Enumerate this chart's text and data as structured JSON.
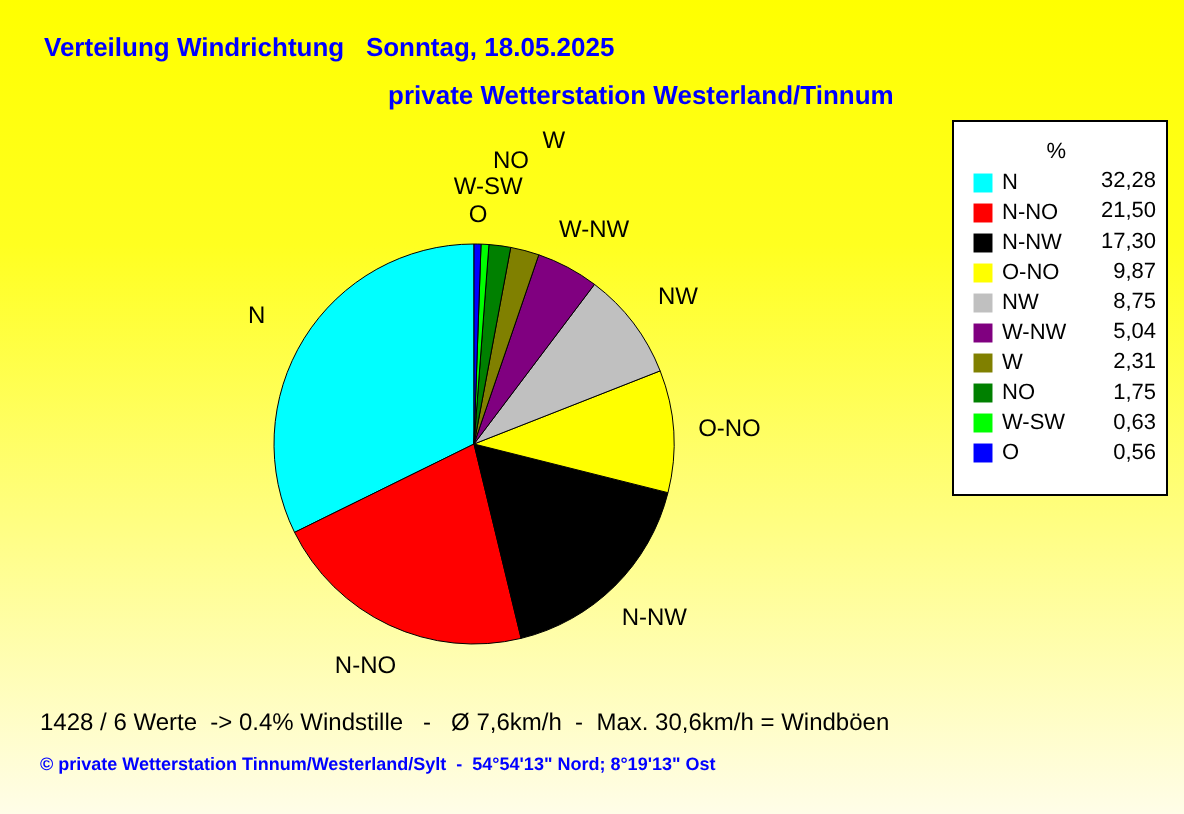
{
  "chart_data": {
    "type": "pie",
    "title": "Verteilung Windrichtung   Sonntag, 18.05.2025",
    "subtitle": "private Wetterstation Westerland/Tinnum",
    "legend_title": "%",
    "legend": "right",
    "categories": [
      "N",
      "N-NO",
      "N-NW",
      "O-NO",
      "NW",
      "W-NW",
      "W",
      "NO",
      "W-SW",
      "O"
    ],
    "values": [
      32.28,
      21.5,
      17.3,
      9.87,
      8.75,
      5.04,
      2.31,
      1.75,
      0.63,
      0.56
    ],
    "value_labels": [
      "32,28",
      "21,50",
      "17,30",
      "9,87",
      "8,75",
      "5,04",
      "2,31",
      "1,75",
      "0,63",
      "0,56"
    ],
    "colors": [
      "#00ffff",
      "#ff0000",
      "#000000",
      "#ffff00",
      "#c0c0c0",
      "#800080",
      "#808000",
      "#008000",
      "#00ff00",
      "#0000ff"
    ],
    "annotations": [
      "1428 / 6 Werte  -> 0.4% Windstille   -   Ø 7,6km/h  -  Max. 30,6km/h = Windböen",
      "© private Wetterstation Tinnum/Westerland/Sylt  -  54°54'13\" Nord; 8°19'13\" Ost"
    ]
  }
}
